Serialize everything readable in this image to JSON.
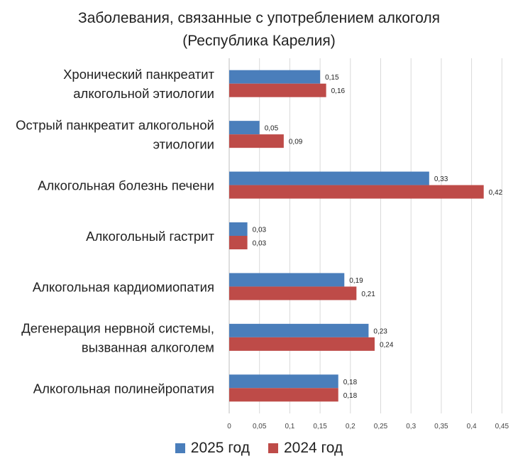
{
  "chart_data": {
    "type": "bar",
    "orientation": "horizontal",
    "title": "Заболевания, связанные с употреблением алкоголя",
    "subtitle": "(Республика Карелия)",
    "categories": [
      [
        "Хронический панкреатит",
        "алкогольной этиологии"
      ],
      [
        "Острый панкреатит алкогольной",
        "этиологии"
      ],
      [
        "Алкогольная болезнь печени"
      ],
      [
        "Алкогольный гастрит"
      ],
      [
        "Алкогольная кардиомиопатия"
      ],
      [
        "Дегенерация нервной системы,",
        "вызванная алкоголем"
      ],
      [
        "Алкогольная полинейропатия"
      ]
    ],
    "series": [
      {
        "name": "2025 год",
        "color": "#4a7ebb",
        "values": [
          0.15,
          0.05,
          0.33,
          0.03,
          0.19,
          0.23,
          0.18
        ],
        "labels": [
          "0,15",
          "0,05",
          "0,33",
          "0,03",
          "0,19",
          "0,23",
          "0,18"
        ]
      },
      {
        "name": "2024 год",
        "color": "#be4b48",
        "values": [
          0.16,
          0.09,
          0.42,
          0.03,
          0.21,
          0.24,
          0.18
        ],
        "labels": [
          "0,16",
          "0,09",
          "0,42",
          "0,03",
          "0,21",
          "0,24",
          "0,18"
        ]
      }
    ],
    "xlim": [
      0,
      0.45
    ],
    "ticks": [
      0,
      0.05,
      0.1,
      0.15,
      0.2,
      0.25,
      0.3,
      0.35,
      0.4,
      0.45
    ],
    "tick_labels": [
      "0",
      "0,05",
      "0,1",
      "0,15",
      "0,2",
      "0,25",
      "0,3",
      "0,35",
      "0,4",
      "0,45"
    ],
    "grid": true,
    "legend_position": "bottom"
  }
}
